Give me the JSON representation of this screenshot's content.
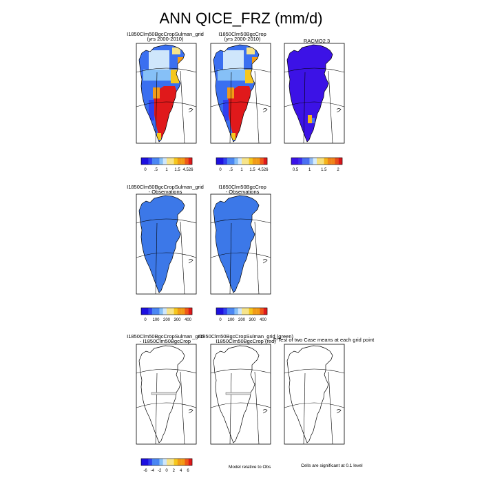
{
  "figure_title": "ANN QICE_FRZ (mm/d)",
  "colors": {
    "greenland_obs_diff": "#3c78e8",
    "racmo_blue": "#3c12e6",
    "outline": "#000000"
  },
  "chart_data": [
    {
      "type": "heatmap",
      "title_lines": [
        "I1850Clm50BgcCropSulman_grid",
        "(yrs 2000-2010)"
      ],
      "variable": "QICE_FRZ",
      "units": "mm/d",
      "colorbar_ticks": [
        "0",
        ".5",
        "1",
        "1.5",
        "4.526"
      ],
      "scheme": "case"
    },
    {
      "type": "heatmap",
      "title_lines": [
        "I1850Clm50BgcCrop",
        "(yrs 2000-2010)"
      ],
      "variable": "QICE_FRZ",
      "units": "mm/d",
      "colorbar_ticks": [
        "0",
        ".5",
        "1",
        "1.5",
        "4.526"
      ],
      "scheme": "case"
    },
    {
      "type": "heatmap",
      "title_lines": [
        "RACMO2.3"
      ],
      "variable": "QICE_FRZ",
      "units": "mm/d",
      "colorbar_ticks": [
        "0.5",
        "1",
        "1.5",
        "2"
      ],
      "scheme": "racmo"
    },
    {
      "type": "heatmap",
      "title_lines": [
        "I1850Clm50BgcCropSulman_grid",
        "- Observations"
      ],
      "variable": "QICE_FRZ",
      "units": "mm/d",
      "colorbar_ticks": [
        "0",
        "100",
        "200",
        "300",
        "400"
      ],
      "scheme": "diff"
    },
    {
      "type": "heatmap",
      "title_lines": [
        "I1850Clm50BgcCrop",
        "- Observations"
      ],
      "variable": "QICE_FRZ",
      "units": "mm/d",
      "colorbar_ticks": [
        "0",
        "100",
        "200",
        "300",
        "400"
      ],
      "scheme": "diff"
    },
    {
      "type": "heatmap",
      "title_lines": [
        "I1850Clm50BgcCropSulman_grid",
        "- I1850Clm50BgcCrop"
      ],
      "colorbar_ticks": [
        "-6",
        "-4",
        "-2",
        "0",
        "2",
        "4",
        "6"
      ],
      "scheme": "empty"
    },
    {
      "type": "heatmap",
      "title_lines": [
        "I1850Clm50BgcCropSulman_grid (green)",
        "I1850Clm50BgcCrop (red)"
      ],
      "colorbar_ticks": [],
      "scheme": "empty"
    },
    {
      "type": "heatmap",
      "title_lines": [
        "T-Test of two Case means at each grid point"
      ],
      "colorbar_ticks": [],
      "scheme": "empty"
    }
  ],
  "notes": {
    "model_relative": "Model relative to Obs",
    "cells_significant": "Cells are significant at 0.1 level"
  }
}
